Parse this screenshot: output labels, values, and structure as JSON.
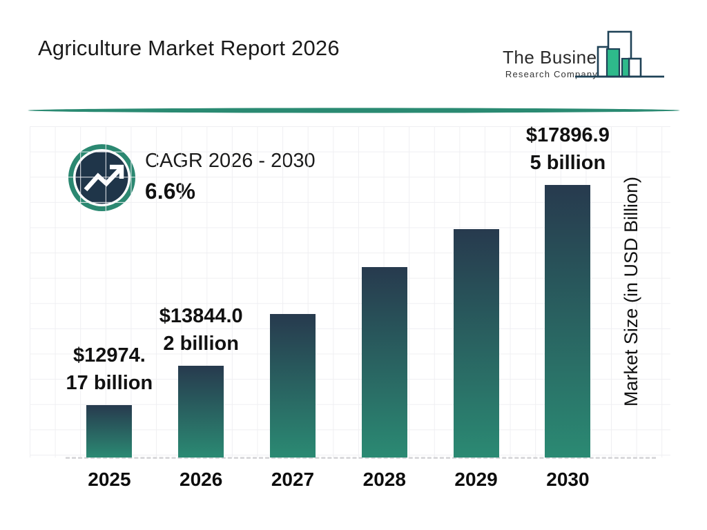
{
  "header": {
    "title": "Agriculture Market Report 2026"
  },
  "logo": {
    "name_line1": "The Business",
    "name_line2": "Research Company"
  },
  "cagr": {
    "label": "CAGR 2026 - 2030",
    "value": "6.6%"
  },
  "chart_data": {
    "type": "bar",
    "title": "Agriculture Market Report 2026",
    "xlabel": "",
    "ylabel": "Market Size (in USD Billion)",
    "ylim": [
      11800,
      19200
    ],
    "grid": true,
    "categories": [
      "2025",
      "2026",
      "2027",
      "2028",
      "2029",
      "2030"
    ],
    "values": [
      12974.17,
      13844.02,
      15000,
      16050,
      16900,
      17896.95
    ],
    "points": [
      {
        "year": "2025",
        "value": 12974.17,
        "label_line1": "$12974.",
        "label_line2": "17 billion"
      },
      {
        "year": "2026",
        "value": 13844.02,
        "label_line1": "$13844.0",
        "label_line2": "2 billion"
      },
      {
        "year": "2027",
        "value": 15000,
        "label_line1": "",
        "label_line2": ""
      },
      {
        "year": "2028",
        "value": 16050,
        "label_line1": "",
        "label_line2": ""
      },
      {
        "year": "2029",
        "value": 16900,
        "label_line1": "",
        "label_line2": ""
      },
      {
        "year": "2030",
        "value": 17896.95,
        "label_line1": "$17896.9",
        "label_line2": "5 billion"
      }
    ]
  },
  "colors": {
    "bar_gradient_top": "#273a4e",
    "bar_gradient_bottom": "#2b8a73",
    "accent_teal": "#2a8a72",
    "badge_navy": "#1f3549",
    "logo_green": "#2eba8b",
    "logo_outline": "#1e4156",
    "grid_line": "#efeff2",
    "baseline_dash": "#d9d9dc"
  }
}
